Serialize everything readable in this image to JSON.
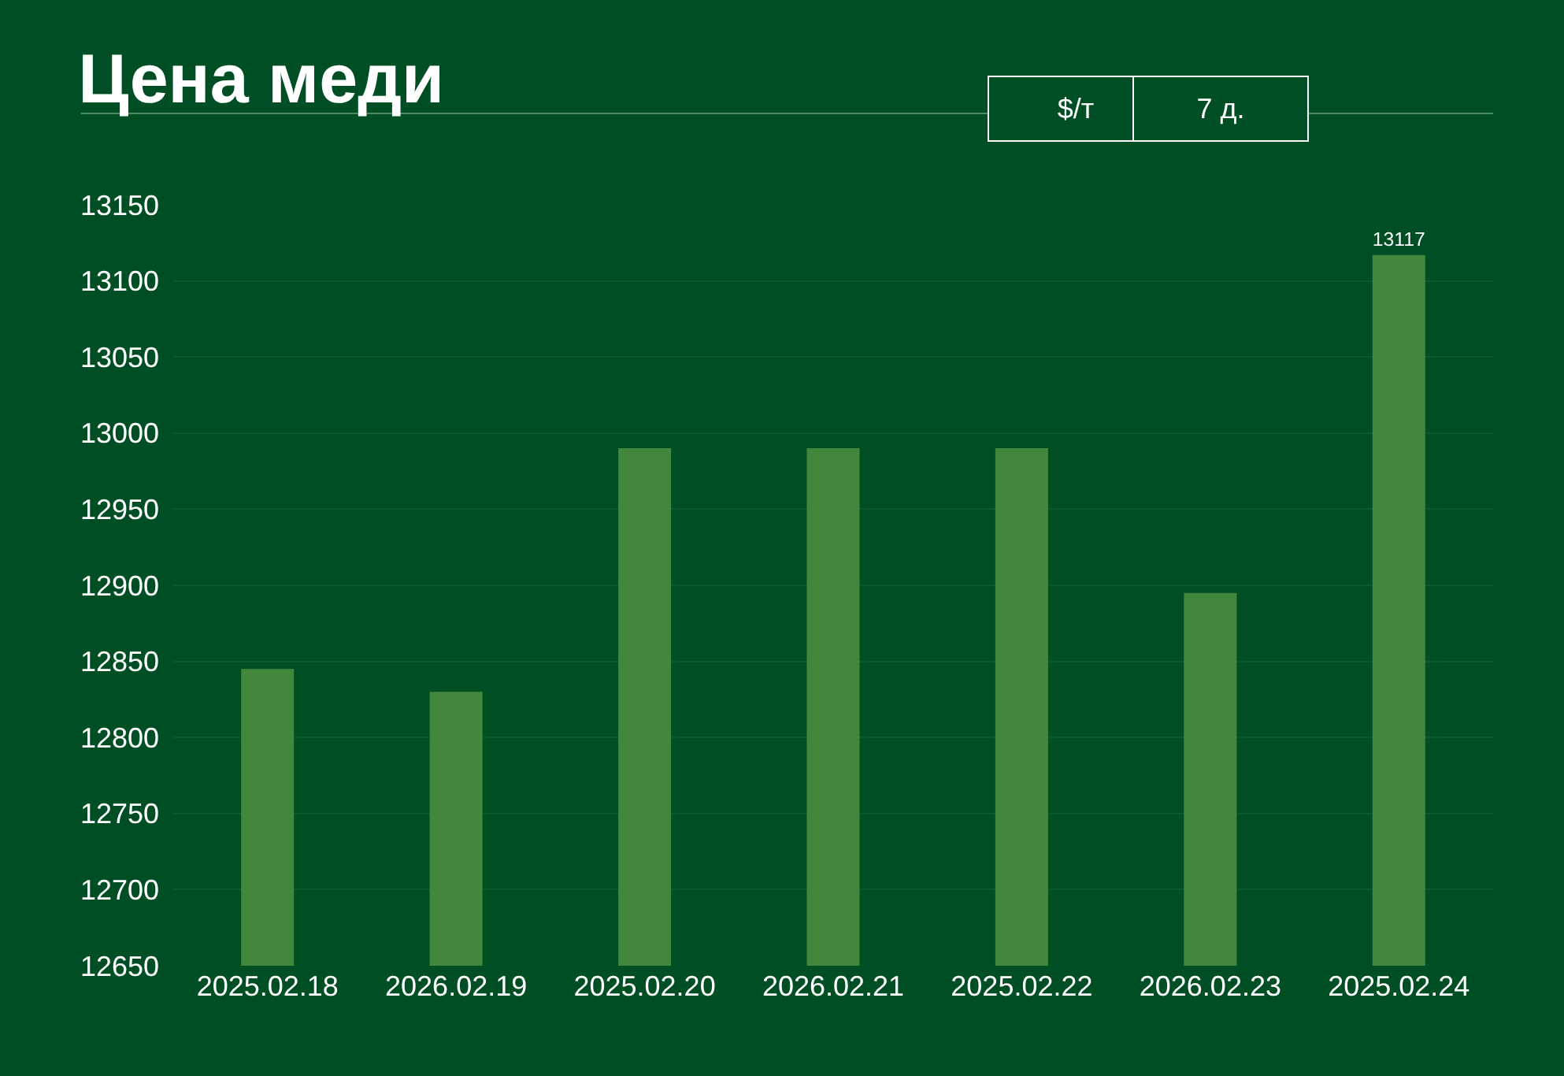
{
  "chart_data": {
    "type": "bar",
    "title": "Цена меди",
    "categories": [
      "2025.02.18",
      "2026.02.19",
      "2025.02.20",
      "2026.02.21",
      "2025.02.22",
      "2026.02.23",
      "2025.02.24"
    ],
    "values": [
      12845,
      12830,
      12990,
      12990,
      12990,
      12895,
      13117
    ],
    "value_labels": [
      null,
      null,
      null,
      null,
      null,
      null,
      "13117"
    ],
    "color": "#43873d",
    "ylim": [
      12650,
      13150
    ],
    "yticks": [
      12650,
      12700,
      12750,
      12800,
      12850,
      12900,
      12950,
      13000,
      13050,
      13100,
      13150
    ],
    "grid": "y",
    "annotations": [
      "$/т",
      "7 д."
    ]
  }
}
